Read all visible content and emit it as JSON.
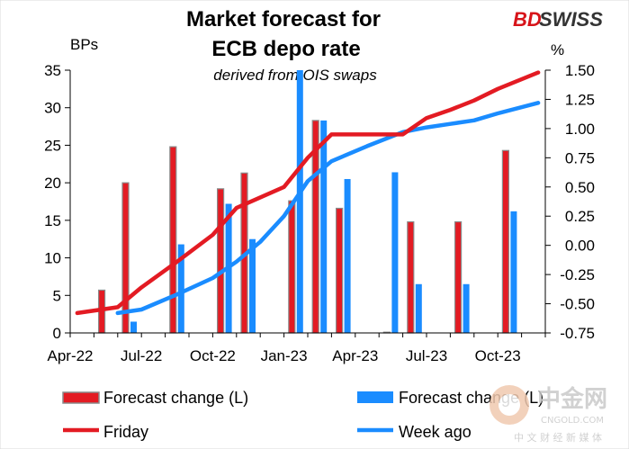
{
  "brand": {
    "part1": "BD",
    "part2": "SWISS",
    "part1_color": "#d7141a",
    "part2_color": "#333333"
  },
  "watermark": {
    "main": "中金网",
    "sub": "CNGOLD.COM",
    "tag": "中 文 财 经 新 媒 体"
  },
  "colors": {
    "red": "#e31b23",
    "blue": "#1a8cff",
    "red_border": "#8a8a8a"
  },
  "chart_data": {
    "type": "bar+line",
    "title": [
      "Market forecast for",
      "ECB depo rate"
    ],
    "subtitle": "derived from OIS swaps",
    "ylabel_left": "BPs",
    "ylabel_right": "%",
    "left_axis": {
      "min": 0,
      "max": 35,
      "ticks": [
        "0",
        "5",
        "10",
        "15",
        "20",
        "25",
        "30",
        "35"
      ]
    },
    "right_axis": {
      "min": -0.75,
      "max": 1.5,
      "ticks": [
        "-0.75",
        "-0.50",
        "-0.25",
        "0.00",
        "0.25",
        "0.50",
        "0.75",
        "1.00",
        "1.25",
        "1.50"
      ]
    },
    "x_range": [
      0,
      20
    ],
    "x_ticks": [
      {
        "label": "Apr-22",
        "x": 0
      },
      {
        "label": "Jul-22",
        "x": 3
      },
      {
        "label": "Oct-22",
        "x": 6
      },
      {
        "label": "Jan-23",
        "x": 9
      },
      {
        "label": "Apr-23",
        "x": 12
      },
      {
        "label": "Jul-23",
        "x": 15
      },
      {
        "label": "Oct-23",
        "x": 18
      }
    ],
    "bars_friday": [
      {
        "x": 1.5,
        "value": 5.7
      },
      {
        "x": 2.5,
        "value": 20.0
      },
      {
        "x": 4.5,
        "value": 24.8
      },
      {
        "x": 6.5,
        "value": 19.2
      },
      {
        "x": 7.5,
        "value": 21.3
      },
      {
        "x": 9.5,
        "value": 17.6
      },
      {
        "x": 10.5,
        "value": 28.3
      },
      {
        "x": 11.5,
        "value": 16.6
      },
      {
        "x": 13.5,
        "value": 0.1
      },
      {
        "x": 14.5,
        "value": 14.8
      },
      {
        "x": 16.5,
        "value": 14.8
      },
      {
        "x": 18.5,
        "value": 24.3
      }
    ],
    "bars_weekago": [
      {
        "x": 2.5,
        "value": 1.5
      },
      {
        "x": 4.5,
        "value": 11.8
      },
      {
        "x": 6.5,
        "value": 17.2
      },
      {
        "x": 7.5,
        "value": 12.5
      },
      {
        "x": 9.5,
        "value": 35.0
      },
      {
        "x": 10.5,
        "value": 28.3
      },
      {
        "x": 11.5,
        "value": 20.5
      },
      {
        "x": 13.5,
        "value": 21.4
      },
      {
        "x": 14.5,
        "value": 6.5
      },
      {
        "x": 16.5,
        "value": 6.5
      },
      {
        "x": 18.5,
        "value": 16.2
      }
    ],
    "line_friday": {
      "x": [
        0.3,
        2.0,
        3.0,
        4.5,
        6.0,
        7.0,
        9.0,
        10.0,
        11.0,
        12.5,
        14.0,
        15.0,
        16.0,
        17.0,
        18.0,
        19.7
      ],
      "y": [
        -0.58,
        -0.53,
        -0.36,
        -0.14,
        0.09,
        0.32,
        0.5,
        0.75,
        0.95,
        0.95,
        0.95,
        1.09,
        1.16,
        1.24,
        1.34,
        1.48
      ]
    },
    "line_weekago": {
      "x": [
        2.0,
        3.0,
        4.5,
        6.0,
        7.0,
        8.0,
        9.0,
        10.0,
        11.0,
        12.5,
        14.0,
        15.0,
        16.0,
        17.0,
        18.0,
        19.7
      ],
      "y": [
        -0.58,
        -0.55,
        -0.42,
        -0.28,
        -0.14,
        0.03,
        0.25,
        0.55,
        0.72,
        0.85,
        0.97,
        1.01,
        1.04,
        1.07,
        1.13,
        1.22
      ]
    },
    "legend": {
      "bar_friday": "Forecast change (L)",
      "bar_weekago": "Forecast change (L)",
      "line_friday": "Friday",
      "line_weekago": "Week ago"
    }
  }
}
